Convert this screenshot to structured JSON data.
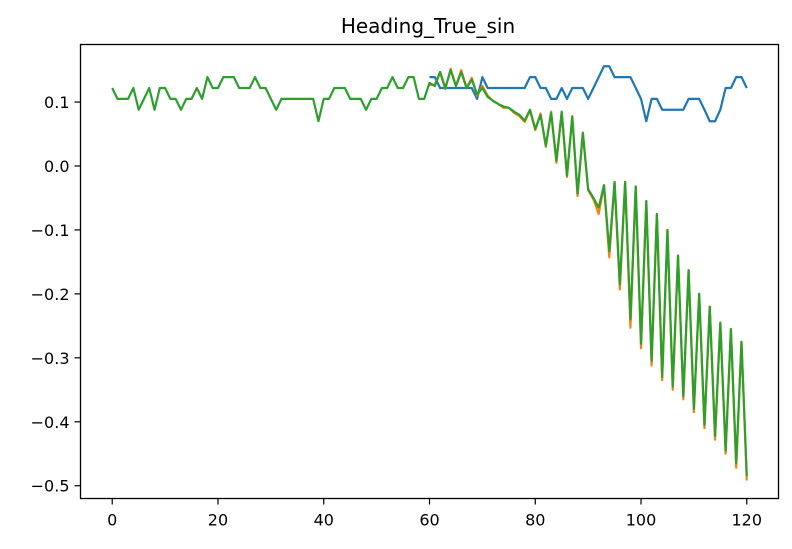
{
  "chart_data": {
    "type": "line",
    "title": "Heading_True_sin",
    "xlabel": "",
    "ylabel": "",
    "xlim": [
      -6,
      126
    ],
    "ylim": [
      -0.52,
      0.19
    ],
    "xticks": [
      0,
      20,
      40,
      60,
      80,
      100,
      120
    ],
    "xtick_labels": [
      "0",
      "20",
      "40",
      "60",
      "80",
      "100",
      "120"
    ],
    "yticks": [
      0.1,
      0.0,
      -0.1,
      -0.2,
      -0.3,
      -0.4,
      -0.5
    ],
    "ytick_labels": [
      "0.1",
      "0.0",
      "−0.1",
      "−0.2",
      "−0.3",
      "−0.4",
      "−0.5"
    ],
    "grid": false,
    "series": [
      {
        "color": "#1f77b4",
        "x": [
          60,
          61,
          62,
          63,
          64,
          65,
          66,
          67,
          68,
          69,
          70,
          71,
          72,
          73,
          74,
          75,
          76,
          77,
          78,
          79,
          80,
          81,
          82,
          83,
          84,
          85,
          86,
          87,
          88,
          89,
          90,
          91,
          92,
          93,
          94,
          95,
          96,
          97,
          98,
          99,
          100,
          101,
          102,
          103,
          104,
          105,
          106,
          107,
          108,
          109,
          110,
          111,
          112,
          113,
          114,
          115,
          116,
          117,
          118,
          119,
          120
        ],
        "y": [
          0.139,
          0.139,
          0.122,
          0.122,
          0.122,
          0.122,
          0.122,
          0.122,
          0.122,
          0.105,
          0.139,
          0.122,
          0.122,
          0.122,
          0.122,
          0.122,
          0.122,
          0.122,
          0.122,
          0.139,
          0.139,
          0.122,
          0.122,
          0.105,
          0.105,
          0.122,
          0.105,
          0.122,
          0.122,
          0.122,
          0.105,
          0.122,
          0.139,
          0.156,
          0.156,
          0.139,
          0.139,
          0.139,
          0.139,
          0.122,
          0.105,
          0.07,
          0.105,
          0.105,
          0.088,
          0.088,
          0.088,
          0.088,
          0.088,
          0.105,
          0.105,
          0.105,
          0.088,
          0.07,
          0.07,
          0.088,
          0.122,
          0.122,
          0.139,
          0.139,
          0.122
        ]
      },
      {
        "color": "#ff7f0e",
        "x": [
          60,
          61,
          62,
          63,
          64,
          65,
          66,
          67,
          68,
          69,
          70,
          71,
          72,
          73,
          74,
          75,
          76,
          77,
          78,
          79,
          80,
          81,
          82,
          83,
          84,
          85,
          86,
          87,
          88,
          89,
          90,
          91,
          92,
          93,
          94,
          95,
          96,
          97,
          98,
          99,
          100,
          101,
          102,
          103,
          104,
          105,
          106,
          107,
          108,
          109,
          110,
          111,
          112,
          113,
          114,
          115,
          116,
          117,
          118,
          119,
          120
        ],
        "y": [
          0.127,
          0.127,
          0.147,
          0.12,
          0.152,
          0.125,
          0.15,
          0.122,
          0.138,
          0.11,
          0.125,
          0.11,
          0.102,
          0.097,
          0.091,
          0.091,
          0.083,
          0.078,
          0.069,
          0.087,
          0.056,
          0.082,
          0.03,
          0.085,
          0.005,
          0.083,
          -0.017,
          0.078,
          -0.047,
          0.052,
          -0.038,
          -0.052,
          -0.075,
          -0.03,
          -0.143,
          -0.025,
          -0.193,
          -0.025,
          -0.253,
          -0.032,
          -0.285,
          -0.055,
          -0.312,
          -0.075,
          -0.335,
          -0.1,
          -0.35,
          -0.14,
          -0.365,
          -0.163,
          -0.385,
          -0.2,
          -0.41,
          -0.22,
          -0.428,
          -0.245,
          -0.45,
          -0.255,
          -0.472,
          -0.275,
          -0.492
        ]
      },
      {
        "color": "#2ca02c",
        "x": [
          0,
          1,
          2,
          3,
          4,
          5,
          6,
          7,
          8,
          9,
          10,
          11,
          12,
          13,
          14,
          15,
          16,
          17,
          18,
          19,
          20,
          21,
          22,
          23,
          24,
          25,
          26,
          27,
          28,
          29,
          30,
          31,
          32,
          33,
          34,
          35,
          36,
          37,
          38,
          39,
          40,
          41,
          42,
          43,
          44,
          45,
          46,
          47,
          48,
          49,
          50,
          51,
          52,
          53,
          54,
          55,
          56,
          57,
          58,
          59,
          60,
          61,
          62,
          63,
          64,
          65,
          66,
          67,
          68,
          69,
          70,
          71,
          72,
          73,
          74,
          75,
          76,
          77,
          78,
          79,
          80,
          81,
          82,
          83,
          84,
          85,
          86,
          87,
          88,
          89,
          90,
          91,
          92,
          93,
          94,
          95,
          96,
          97,
          98,
          99,
          100,
          101,
          102,
          103,
          104,
          105,
          106,
          107,
          108,
          109,
          110,
          111,
          112,
          113,
          114,
          115,
          116,
          117,
          118,
          119,
          120
        ],
        "y": [
          0.122,
          0.105,
          0.105,
          0.105,
          0.122,
          0.088,
          0.105,
          0.122,
          0.088,
          0.122,
          0.122,
          0.105,
          0.105,
          0.088,
          0.105,
          0.105,
          0.122,
          0.105,
          0.139,
          0.122,
          0.122,
          0.139,
          0.139,
          0.139,
          0.122,
          0.122,
          0.122,
          0.139,
          0.122,
          0.122,
          0.105,
          0.088,
          0.105,
          0.105,
          0.105,
          0.105,
          0.105,
          0.105,
          0.105,
          0.07,
          0.105,
          0.105,
          0.122,
          0.122,
          0.122,
          0.105,
          0.105,
          0.105,
          0.088,
          0.105,
          0.105,
          0.122,
          0.122,
          0.139,
          0.122,
          0.122,
          0.139,
          0.139,
          0.105,
          0.105,
          0.13,
          0.125,
          0.147,
          0.122,
          0.15,
          0.125,
          0.147,
          0.122,
          0.135,
          0.112,
          0.122,
          0.108,
          0.102,
          0.097,
          0.093,
          0.091,
          0.085,
          0.08,
          0.071,
          0.088,
          0.058,
          0.08,
          0.032,
          0.083,
          0.008,
          0.085,
          -0.015,
          0.077,
          -0.043,
          0.052,
          -0.036,
          -0.05,
          -0.065,
          -0.03,
          -0.133,
          -0.025,
          -0.185,
          -0.025,
          -0.24,
          -0.032,
          -0.278,
          -0.055,
          -0.305,
          -0.075,
          -0.33,
          -0.1,
          -0.345,
          -0.14,
          -0.36,
          -0.163,
          -0.38,
          -0.2,
          -0.405,
          -0.22,
          -0.422,
          -0.245,
          -0.445,
          -0.255,
          -0.465,
          -0.275,
          -0.485
        ]
      }
    ]
  }
}
